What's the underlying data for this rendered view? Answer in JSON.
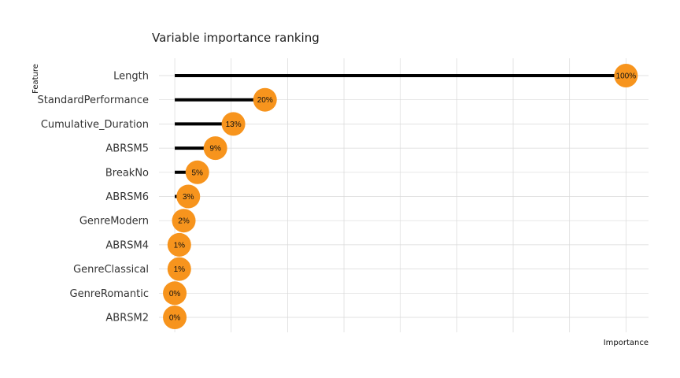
{
  "chart_data": {
    "type": "lollipop",
    "title": "Variable importance ranking",
    "xlabel": "Importance",
    "ylabel": "Feature",
    "categories": [
      "Length",
      "StandardPerformance",
      "Cumulative_Duration",
      "ABRSM5",
      "BreakNo",
      "ABRSM6",
      "GenreModern",
      "ABRSM4",
      "GenreClassical",
      "GenreRomantic",
      "ABRSM2"
    ],
    "values": [
      100,
      20,
      13,
      9,
      5,
      3,
      2,
      1,
      1,
      0,
      0
    ],
    "labels": [
      "100%",
      "20%",
      "13%",
      "9%",
      "5%",
      "3%",
      "2%",
      "1%",
      "1%",
      "0%",
      "0%"
    ],
    "xlim": [
      -0.035,
      1.05
    ],
    "grid": true,
    "colors": {
      "point": "#F7941D",
      "segment": "#000000",
      "grid": "#D9D9D9"
    }
  }
}
